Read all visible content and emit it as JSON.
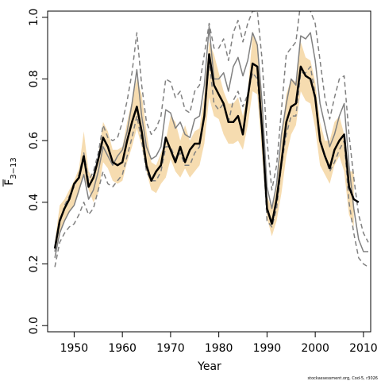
{
  "chart_data": {
    "type": "line",
    "title": "",
    "xlabel": "Year",
    "ylabel": {
      "base": "F",
      "subscript": "3−13"
    },
    "xlim": [
      1944.5,
      2011.5
    ],
    "ylim": [
      -0.02,
      1.02
    ],
    "xticks": [
      1950,
      1960,
      1970,
      1980,
      1990,
      2000,
      2010
    ],
    "yticks": [
      0.0,
      0.2,
      0.4,
      0.6,
      0.8,
      1.0
    ],
    "ytick_labels": [
      "0.0",
      "0.2",
      "0.4",
      "0.6",
      "0.8",
      "1.0"
    ],
    "grid": false,
    "colors": {
      "band": "#f6dcb0",
      "main_line": "#000000",
      "comparison_line": "#808080",
      "comparison_bounds": "#808080"
    },
    "series": [
      {
        "role": "confidence_band",
        "x": [
          1946,
          1947,
          1948,
          1949,
          1950,
          1951,
          1952,
          1953,
          1954,
          1955,
          1956,
          1957,
          1958,
          1959,
          1960,
          1961,
          1962,
          1963,
          1964,
          1965,
          1966,
          1967,
          1968,
          1969,
          1970,
          1971,
          1972,
          1973,
          1974,
          1975,
          1976,
          1977,
          1978,
          1979,
          1980,
          1981,
          1982,
          1983,
          1984,
          1985,
          1986,
          1987,
          1988,
          1989,
          1990,
          1991,
          1992,
          1993,
          1994,
          1995,
          1996,
          1997,
          1998,
          1999,
          2000,
          2001,
          2002,
          2003,
          2004,
          2005,
          2006,
          2007,
          2008
        ],
        "lower": [
          0.24,
          0.3,
          0.34,
          0.37,
          0.39,
          0.43,
          0.49,
          0.44,
          0.4,
          0.43,
          0.53,
          0.51,
          0.47,
          0.46,
          0.47,
          0.53,
          0.58,
          0.64,
          0.58,
          0.5,
          0.44,
          0.43,
          0.46,
          0.48,
          0.54,
          0.5,
          0.48,
          0.51,
          0.48,
          0.5,
          0.52,
          0.59,
          0.74,
          0.68,
          0.67,
          0.62,
          0.59,
          0.59,
          0.6,
          0.57,
          0.65,
          0.76,
          0.75,
          0.55,
          0.35,
          0.29,
          0.34,
          0.43,
          0.55,
          0.62,
          0.65,
          0.76,
          0.73,
          0.72,
          0.64,
          0.52,
          0.49,
          0.46,
          0.52,
          0.55,
          0.5,
          0.36,
          0.32
        ],
        "upper": [
          0.27,
          0.39,
          0.41,
          0.44,
          0.47,
          0.51,
          0.63,
          0.5,
          0.48,
          0.55,
          0.66,
          0.63,
          0.57,
          0.57,
          0.58,
          0.66,
          0.73,
          0.8,
          0.75,
          0.63,
          0.53,
          0.52,
          0.56,
          0.6,
          0.68,
          0.66,
          0.6,
          0.65,
          0.6,
          0.63,
          0.64,
          0.75,
          0.92,
          0.88,
          0.82,
          0.76,
          0.72,
          0.72,
          0.74,
          0.68,
          0.76,
          0.94,
          0.92,
          0.74,
          0.42,
          0.38,
          0.46,
          0.61,
          0.75,
          0.8,
          0.79,
          0.92,
          0.87,
          0.86,
          0.79,
          0.66,
          0.6,
          0.6,
          0.66,
          0.68,
          0.62,
          0.5,
          0.5
        ]
      },
      {
        "role": "main",
        "x": [
          1946,
          1947,
          1948,
          1949,
          1950,
          1951,
          1952,
          1953,
          1954,
          1955,
          1956,
          1957,
          1958,
          1959,
          1960,
          1961,
          1962,
          1963,
          1964,
          1965,
          1966,
          1967,
          1968,
          1969,
          1970,
          1971,
          1972,
          1973,
          1974,
          1975,
          1976,
          1977,
          1978,
          1979,
          1980,
          1981,
          1982,
          1983,
          1984,
          1985,
          1986,
          1987,
          1988,
          1989,
          1990,
          1991,
          1992,
          1993,
          1994,
          1995,
          1996,
          1997,
          1998,
          1999,
          2000,
          2001,
          2002,
          2003,
          2004,
          2005,
          2006,
          2007,
          2008,
          2009
        ],
        "values": [
          0.25,
          0.34,
          0.38,
          0.41,
          0.46,
          0.48,
          0.55,
          0.45,
          0.48,
          0.54,
          0.61,
          0.58,
          0.53,
          0.52,
          0.53,
          0.6,
          0.66,
          0.71,
          0.63,
          0.52,
          0.47,
          0.5,
          0.52,
          0.61,
          0.57,
          0.53,
          0.58,
          0.53,
          0.57,
          0.59,
          0.59,
          0.68,
          0.88,
          0.78,
          0.75,
          0.72,
          0.66,
          0.66,
          0.68,
          0.62,
          0.74,
          0.85,
          0.84,
          0.63,
          0.38,
          0.33,
          0.41,
          0.53,
          0.66,
          0.71,
          0.72,
          0.84,
          0.81,
          0.8,
          0.74,
          0.6,
          0.55,
          0.51,
          0.57,
          0.6,
          0.62,
          0.45,
          0.41,
          0.4
        ]
      },
      {
        "role": "comparison",
        "x": [
          1946,
          1947,
          1948,
          1949,
          1950,
          1951,
          1952,
          1953,
          1954,
          1955,
          1956,
          1957,
          1958,
          1959,
          1960,
          1961,
          1962,
          1963,
          1964,
          1965,
          1966,
          1967,
          1968,
          1969,
          1970,
          1971,
          1972,
          1973,
          1974,
          1975,
          1976,
          1977,
          1978,
          1979,
          1980,
          1981,
          1982,
          1983,
          1984,
          1985,
          1986,
          1987,
          1988,
          1989,
          1990,
          1991,
          1992,
          1993,
          1994,
          1995,
          1996,
          1997,
          1998,
          1999,
          2000,
          2001,
          2002,
          2003,
          2004,
          2005,
          2006,
          2007,
          2008,
          2009,
          2010,
          2011
        ],
        "values": [
          0.22,
          0.3,
          0.34,
          0.37,
          0.39,
          0.44,
          0.49,
          0.41,
          0.44,
          0.5,
          0.58,
          0.55,
          0.52,
          0.55,
          0.57,
          0.63,
          0.72,
          0.83,
          0.68,
          0.58,
          0.54,
          0.55,
          0.58,
          0.7,
          0.69,
          0.64,
          0.66,
          0.62,
          0.61,
          0.67,
          0.68,
          0.78,
          0.97,
          0.8,
          0.8,
          0.82,
          0.76,
          0.84,
          0.87,
          0.81,
          0.86,
          0.95,
          0.91,
          0.72,
          0.45,
          0.38,
          0.46,
          0.62,
          0.72,
          0.8,
          0.78,
          0.94,
          0.93,
          0.95,
          0.86,
          0.72,
          0.65,
          0.58,
          0.62,
          0.68,
          0.72,
          0.52,
          0.38,
          0.28,
          0.24,
          0.24
        ]
      },
      {
        "role": "comparison_upper",
        "x": [
          1946,
          1947,
          1948,
          1949,
          1950,
          1951,
          1952,
          1953,
          1954,
          1955,
          1956,
          1957,
          1958,
          1959,
          1960,
          1961,
          1962,
          1963,
          1964,
          1965,
          1966,
          1967,
          1968,
          1969,
          1970,
          1971,
          1972,
          1973,
          1974,
          1975,
          1976,
          1977,
          1978,
          1979,
          1980,
          1981,
          1982,
          1983,
          1984,
          1985,
          1986,
          1987,
          1988,
          1989,
          1990,
          1991,
          1992,
          1993,
          1994,
          1995,
          1996,
          1997,
          1998,
          1999,
          2000,
          2001,
          2002,
          2003,
          2004,
          2005,
          2006,
          2007,
          2008,
          2009,
          2010,
          2011
        ],
        "values": [
          0.24,
          0.33,
          0.39,
          0.42,
          0.45,
          0.49,
          0.56,
          0.47,
          0.5,
          0.56,
          0.65,
          0.61,
          0.6,
          0.61,
          0.66,
          0.73,
          0.82,
          0.95,
          0.78,
          0.66,
          0.62,
          0.64,
          0.68,
          0.8,
          0.79,
          0.74,
          0.76,
          0.7,
          0.69,
          0.76,
          0.78,
          0.88,
          0.98,
          0.9,
          0.9,
          0.93,
          0.86,
          0.95,
          0.99,
          0.92,
          0.98,
          1.02,
          1.02,
          0.86,
          0.6,
          0.44,
          0.52,
          0.7,
          0.88,
          0.9,
          0.92,
          1.05,
          1.04,
          1.02,
          0.98,
          0.86,
          0.74,
          0.67,
          0.74,
          0.8,
          0.81,
          0.62,
          0.48,
          0.36,
          0.3,
          0.27
        ]
      },
      {
        "role": "comparison_lower",
        "x": [
          1946,
          1947,
          1948,
          1949,
          1950,
          1951,
          1952,
          1953,
          1954,
          1955,
          1956,
          1957,
          1958,
          1959,
          1960,
          1961,
          1962,
          1963,
          1964,
          1965,
          1966,
          1967,
          1968,
          1969,
          1970,
          1971,
          1972,
          1973,
          1974,
          1975,
          1976,
          1977,
          1978,
          1979,
          1980,
          1981,
          1982,
          1983,
          1984,
          1985,
          1986,
          1987,
          1988,
          1989,
          1990,
          1991,
          1992,
          1993,
          1994,
          1995,
          1996,
          1997,
          1998,
          1999,
          2000,
          2001,
          2002,
          2003,
          2004,
          2005,
          2006,
          2007,
          2008,
          2009,
          2010,
          2011
        ],
        "values": [
          0.19,
          0.27,
          0.3,
          0.32,
          0.33,
          0.36,
          0.4,
          0.36,
          0.38,
          0.44,
          0.5,
          0.46,
          0.45,
          0.47,
          0.49,
          0.55,
          0.61,
          0.68,
          0.6,
          0.5,
          0.47,
          0.47,
          0.5,
          0.58,
          0.58,
          0.54,
          0.56,
          0.52,
          0.52,
          0.56,
          0.58,
          0.68,
          0.86,
          0.72,
          0.7,
          0.72,
          0.66,
          0.73,
          0.76,
          0.71,
          0.75,
          0.82,
          0.8,
          0.62,
          0.34,
          0.32,
          0.38,
          0.52,
          0.62,
          0.68,
          0.68,
          0.82,
          0.82,
          0.84,
          0.75,
          0.6,
          0.55,
          0.5,
          0.53,
          0.57,
          0.6,
          0.4,
          0.3,
          0.22,
          0.2,
          0.19
        ]
      }
    ]
  },
  "credit": "stockassessment.org, Cod-5, r3026"
}
